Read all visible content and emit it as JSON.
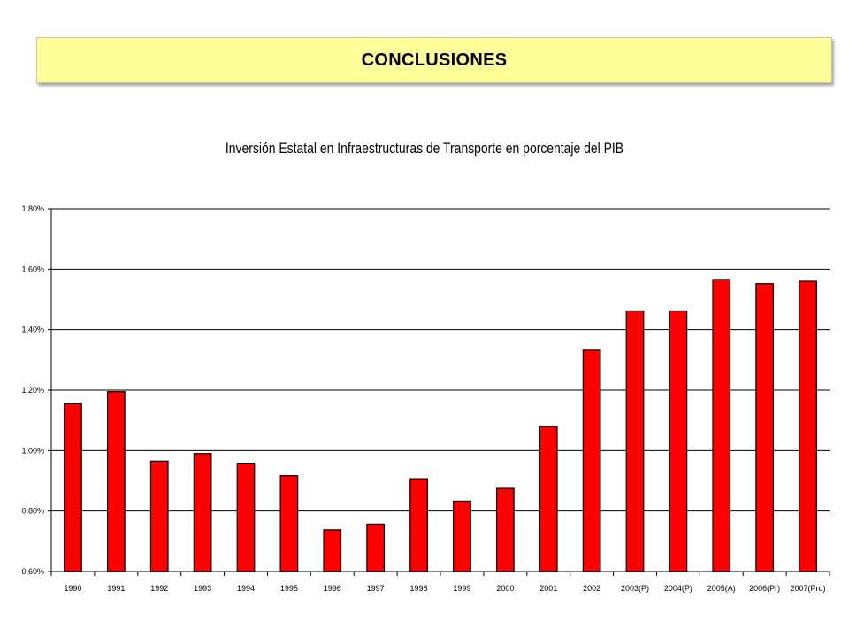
{
  "header": {
    "title": "CONCLUSIONES"
  },
  "colors": {
    "banner": "#ffff99",
    "bar": "#ff0000",
    "bar_outline": "#000000",
    "gridline": "#000000"
  },
  "chart_data": {
    "type": "bar",
    "title": "Inversión Estatal en Infraestructuras de Transporte en porcentaje del PIB",
    "xlabel": "",
    "ylabel": "",
    "ylim": [
      0.6,
      1.8
    ],
    "yticks": [
      0.6,
      0.8,
      1.0,
      1.2,
      1.4,
      1.6,
      1.8
    ],
    "ytick_labels": [
      "0,60%",
      "0,80%",
      "1,00%",
      "1,20%",
      "1,40%",
      "1,60%",
      "1,80%"
    ],
    "grid": true,
    "categories": [
      "1990",
      "1991",
      "1992",
      "1993",
      "1994",
      "1995",
      "1996",
      "1997",
      "1998",
      "1999",
      "2000",
      "2001",
      "2002",
      "2003(P)",
      "2004(P)",
      "2005(A)",
      "2006(Pr)",
      "2007(Pro)"
    ],
    "values": [
      1.155,
      1.195,
      0.965,
      0.99,
      0.958,
      0.917,
      0.738,
      0.757,
      0.907,
      0.833,
      0.875,
      1.08,
      1.332,
      1.462,
      1.462,
      1.566,
      1.552,
      1.56
    ]
  }
}
